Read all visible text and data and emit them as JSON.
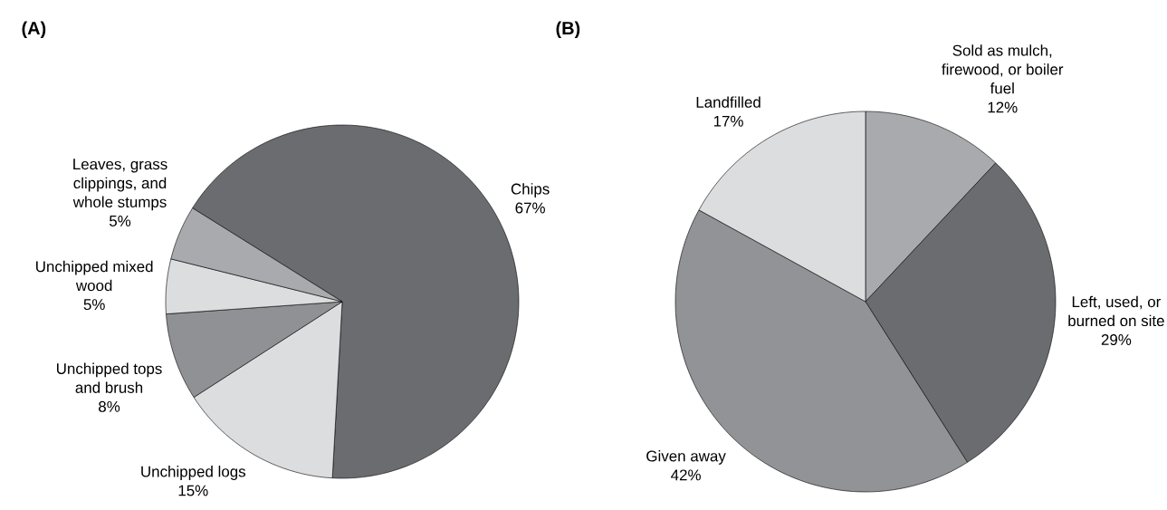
{
  "chart_data": [
    {
      "type": "pie",
      "title": "(A)",
      "categories": [
        "Chips",
        "Unchipped logs",
        "Unchipped tops and brush",
        "Unchipped mixed wood",
        "Leaves, grass clippings, and whole stumps"
      ],
      "values": [
        67,
        15,
        8,
        5,
        5
      ],
      "value_labels": [
        "67%",
        "15%",
        "8%",
        "5%",
        "5%"
      ],
      "colors": [
        "#6b6c70",
        "#dcdddf",
        "#909194",
        "#dcdddf",
        "#a9aaad"
      ]
    },
    {
      "type": "pie",
      "title": "(B)",
      "categories": [
        "Sold as mulch, firewood, or boiler fuel",
        "Left, used, or burned on site",
        "Given away",
        "Landfilled"
      ],
      "values": [
        12,
        29,
        42,
        17
      ],
      "value_labels": [
        "12%",
        "29%",
        "42%",
        "17%"
      ],
      "colors": [
        "#a9aaad",
        "#6b6c70",
        "#929396",
        "#dcdddf"
      ]
    }
  ]
}
